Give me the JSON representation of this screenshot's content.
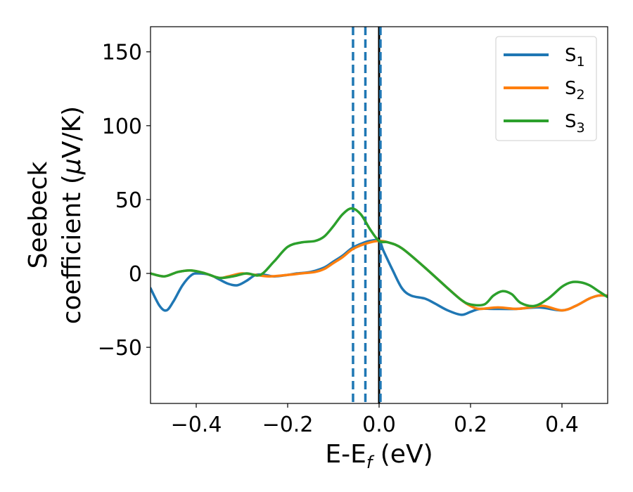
{
  "chart_data": {
    "type": "line",
    "xlabel": "E-E",
    "xlabel_sub": "f",
    "xlabel_unit": " (eV)",
    "ylabel_line1": "Seebeck",
    "ylabel_line2_prefix": "coefficient  (",
    "ylabel_mu": "μ",
    "ylabel_line2_suffix": "V/K)",
    "xlim": [
      -0.5,
      0.5
    ],
    "ylim": [
      -88,
      167
    ],
    "xticks": [
      -0.4,
      -0.2,
      0.0,
      0.2,
      0.4
    ],
    "xtick_labels": [
      "−0.4",
      "−0.2",
      "0.0",
      "0.2",
      "0.4"
    ],
    "yticks": [
      150,
      100,
      50,
      0,
      -50
    ],
    "ytick_labels": [
      "150",
      "100",
      "50",
      "0",
      "−50"
    ],
    "grid": false,
    "legend_position": "top-right",
    "series": [
      {
        "name": "S",
        "sub": "1",
        "color": "#1f77b4",
        "points": [
          [
            -0.5,
            -10
          ],
          [
            -0.48,
            -22
          ],
          [
            -0.465,
            -25
          ],
          [
            -0.45,
            -19
          ],
          [
            -0.43,
            -8
          ],
          [
            -0.41,
            -1
          ],
          [
            -0.395,
            0
          ],
          [
            -0.37,
            -1
          ],
          [
            -0.35,
            -4
          ],
          [
            -0.33,
            -7
          ],
          [
            -0.31,
            -8
          ],
          [
            -0.29,
            -5
          ],
          [
            -0.27,
            -1
          ],
          [
            -0.25,
            -1
          ],
          [
            -0.23,
            -2
          ],
          [
            -0.2,
            -1
          ],
          [
            -0.18,
            0
          ],
          [
            -0.15,
            1
          ],
          [
            -0.12,
            4
          ],
          [
            -0.1,
            8
          ],
          [
            -0.08,
            12
          ],
          [
            -0.06,
            17
          ],
          [
            -0.04,
            20
          ],
          [
            -0.02,
            22
          ],
          [
            0.0,
            22
          ],
          [
            0.01,
            15
          ],
          [
            0.03,
            2
          ],
          [
            0.05,
            -10
          ],
          [
            0.07,
            -15
          ],
          [
            0.1,
            -17
          ],
          [
            0.12,
            -20
          ],
          [
            0.15,
            -25
          ],
          [
            0.18,
            -28
          ],
          [
            0.2,
            -26
          ],
          [
            0.22,
            -24
          ],
          [
            0.25,
            -24
          ],
          [
            0.3,
            -24
          ],
          [
            0.35,
            -23
          ],
          [
            0.4,
            -25
          ],
          [
            0.43,
            -22
          ],
          [
            0.46,
            -17
          ],
          [
            0.48,
            -15
          ],
          [
            0.5,
            -15
          ]
        ]
      },
      {
        "name": "S",
        "sub": "2",
        "color": "#ff7f0e",
        "points": [
          [
            -0.5,
            0
          ],
          [
            -0.47,
            -2
          ],
          [
            -0.44,
            1
          ],
          [
            -0.41,
            2
          ],
          [
            -0.38,
            0
          ],
          [
            -0.35,
            -3
          ],
          [
            -0.33,
            -2
          ],
          [
            -0.3,
            0
          ],
          [
            -0.27,
            -1
          ],
          [
            -0.24,
            -2
          ],
          [
            -0.2,
            -1
          ],
          [
            -0.17,
            0
          ],
          [
            -0.14,
            1
          ],
          [
            -0.12,
            3
          ],
          [
            -0.1,
            7
          ],
          [
            -0.08,
            11
          ],
          [
            -0.06,
            16
          ],
          [
            -0.04,
            19
          ],
          [
            -0.02,
            21
          ],
          [
            0.0,
            22
          ],
          [
            0.02,
            21
          ],
          [
            0.05,
            17
          ],
          [
            0.1,
            4
          ],
          [
            0.15,
            -10
          ],
          [
            0.18,
            -18
          ],
          [
            0.2,
            -22
          ],
          [
            0.22,
            -24
          ],
          [
            0.26,
            -23
          ],
          [
            0.3,
            -24
          ],
          [
            0.33,
            -23
          ],
          [
            0.36,
            -22
          ],
          [
            0.4,
            -25
          ],
          [
            0.43,
            -22
          ],
          [
            0.46,
            -17
          ],
          [
            0.48,
            -15
          ],
          [
            0.5,
            -15
          ]
        ]
      },
      {
        "name": "S",
        "sub": "3",
        "color": "#2ca02c",
        "points": [
          [
            -0.5,
            0
          ],
          [
            -0.47,
            -2
          ],
          [
            -0.44,
            1
          ],
          [
            -0.41,
            2
          ],
          [
            -0.38,
            0
          ],
          [
            -0.35,
            -3
          ],
          [
            -0.32,
            -2
          ],
          [
            -0.29,
            0
          ],
          [
            -0.26,
            -1
          ],
          [
            -0.23,
            8
          ],
          [
            -0.2,
            18
          ],
          [
            -0.17,
            21
          ],
          [
            -0.14,
            22
          ],
          [
            -0.12,
            25
          ],
          [
            -0.1,
            32
          ],
          [
            -0.08,
            40
          ],
          [
            -0.06,
            44
          ],
          [
            -0.04,
            40
          ],
          [
            -0.02,
            30
          ],
          [
            0.0,
            22
          ],
          [
            0.02,
            21
          ],
          [
            0.05,
            17
          ],
          [
            0.1,
            4
          ],
          [
            0.15,
            -10
          ],
          [
            0.18,
            -18
          ],
          [
            0.2,
            -21
          ],
          [
            0.23,
            -21
          ],
          [
            0.25,
            -15
          ],
          [
            0.27,
            -12
          ],
          [
            0.29,
            -14
          ],
          [
            0.31,
            -20
          ],
          [
            0.34,
            -22
          ],
          [
            0.37,
            -17
          ],
          [
            0.4,
            -9
          ],
          [
            0.42,
            -6
          ],
          [
            0.44,
            -6
          ],
          [
            0.46,
            -8
          ],
          [
            0.48,
            -12
          ],
          [
            0.5,
            -16
          ]
        ]
      }
    ],
    "vlines": [
      {
        "x": -0.057,
        "style": "dashed",
        "color": "#1f77b4"
      },
      {
        "x": -0.03,
        "style": "dashed",
        "color": "#1f77b4"
      },
      {
        "x": 0.0,
        "style": "solid",
        "color": "#000000"
      },
      {
        "x": 0.003,
        "style": "dashed",
        "color": "#1f77b4"
      }
    ]
  }
}
